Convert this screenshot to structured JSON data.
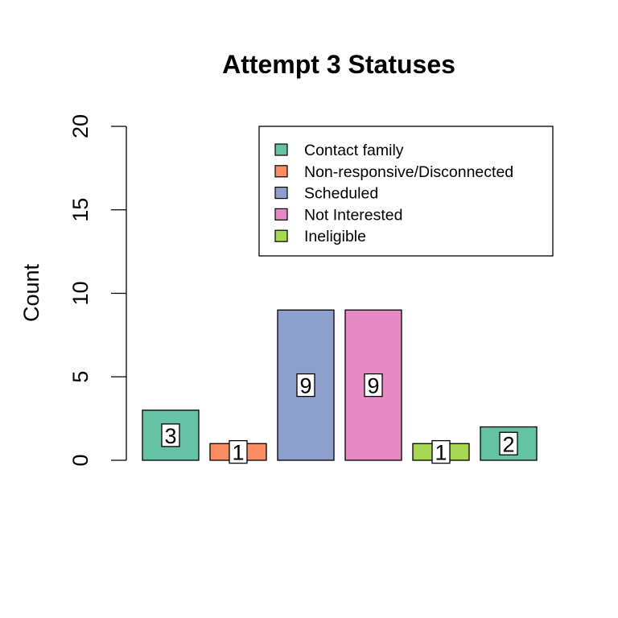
{
  "chart_data": {
    "type": "bar",
    "title": "Attempt 3 Statuses",
    "xlabel": "",
    "ylabel": "Count",
    "ylim": [
      0,
      20
    ],
    "yticks": [
      0,
      5,
      10,
      15,
      20
    ],
    "grid": false,
    "legend_position": "top-right",
    "bars": [
      {
        "value": 3,
        "label": "3",
        "color": "#66c2a5"
      },
      {
        "value": 1,
        "label": "1",
        "color": "#fc8d62"
      },
      {
        "value": 9,
        "label": "9",
        "color": "#8da0cb"
      },
      {
        "value": 9,
        "label": "9",
        "color": "#e78ac3"
      },
      {
        "value": 1,
        "label": "1",
        "color": "#a6d854"
      },
      {
        "value": 2,
        "label": "2",
        "color": "#66c2a5"
      }
    ],
    "legend": [
      {
        "label": "Contact family",
        "color": "#66c2a5"
      },
      {
        "label": "Non-responsive/Disconnected",
        "color": "#fc8d62"
      },
      {
        "label": "Scheduled",
        "color": "#8da0cb"
      },
      {
        "label": "Not Interested",
        "color": "#e78ac3"
      },
      {
        "label": "Ineligible",
        "color": "#a6d854"
      }
    ]
  }
}
